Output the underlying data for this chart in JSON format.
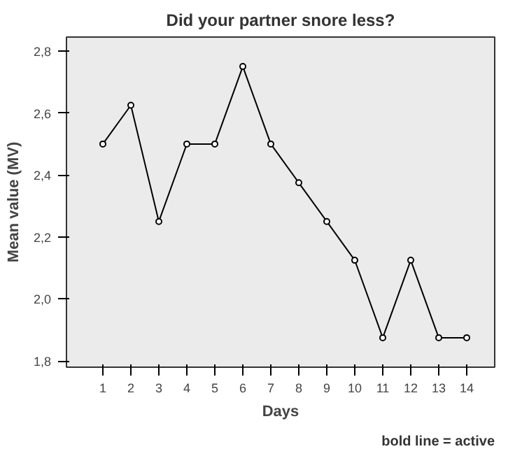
{
  "chart_data": {
    "type": "line",
    "title": "Did your partner snore less?",
    "xlabel": "Days",
    "ylabel": "Mean value (MV)",
    "x": [
      1,
      2,
      3,
      4,
      5,
      6,
      7,
      8,
      9,
      10,
      11,
      12,
      13,
      14
    ],
    "series": [
      {
        "color": "#000000",
        "values": [
          2.5,
          2.625,
          2.25,
          2.5,
          2.5,
          2.75,
          2.5,
          2.375,
          2.25,
          2.125,
          1.875,
          2.125,
          1.875,
          1.875
        ]
      }
    ],
    "xlim": [
      -0.3,
      15
    ],
    "xticks": [
      1,
      2,
      3,
      4,
      5,
      6,
      7,
      8,
      9,
      10,
      11,
      12,
      13,
      14
    ],
    "ylim": [
      1.78,
      2.845
    ],
    "yticks": [
      {
        "value": 1.8,
        "label": "1,8"
      },
      {
        "value": 2.0,
        "label": "2,0"
      },
      {
        "value": 2.2,
        "label": "2,2"
      },
      {
        "value": 2.4,
        "label": "2,4"
      },
      {
        "value": 2.6,
        "label": "2,6"
      },
      {
        "value": 2.8,
        "label": "2,8"
      }
    ],
    "marker": "circle",
    "line_style": "solid",
    "grid": false,
    "annotations": [
      "bold line = active"
    ]
  }
}
